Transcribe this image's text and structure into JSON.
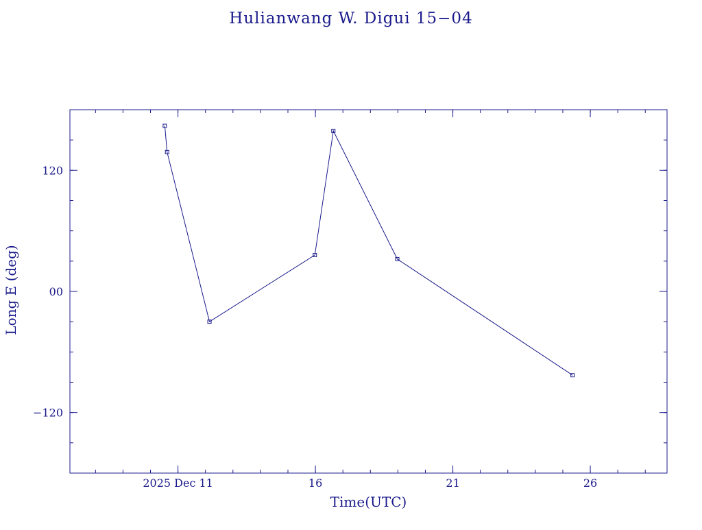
{
  "colors": {
    "ink": "#1a1a8c",
    "background": "#ffffff"
  },
  "chart_data": {
    "type": "line",
    "title": "Hulianwang W. Digui 15−04",
    "xlabel": "Time(UTC)",
    "ylabel": "Long E (deg)",
    "x_ticks": [
      {
        "date": "2025-12-11",
        "label": "2025 Dec 11"
      },
      {
        "date": "2025-12-16",
        "label": "16"
      },
      {
        "date": "2025-12-21",
        "label": "21"
      },
      {
        "date": "2025-12-26",
        "label": "26"
      }
    ],
    "y_ticks": [
      {
        "value": 120,
        "label": "120"
      },
      {
        "value": 0,
        "label": "00"
      },
      {
        "value": -120,
        "label": "−120"
      }
    ],
    "xlim": [
      "2025-12-07T01:40",
      "2025-12-28T19:00"
    ],
    "ylim": [
      -180,
      180
    ],
    "grid": false,
    "series": [
      {
        "marker": "square",
        "points": [
          {
            "x": "2025-12-10T12:30",
            "y": 164
          },
          {
            "x": "2025-12-10T14:30",
            "y": 138
          },
          {
            "x": "2025-12-12T03:30",
            "y": -30
          },
          {
            "x": "2025-12-15T23:30",
            "y": 36
          },
          {
            "x": "2025-12-16T15:40",
            "y": 159
          },
          {
            "x": "2025-12-18T23:30",
            "y": 32
          },
          {
            "x": "2025-12-25T08:30",
            "y": -83
          }
        ]
      }
    ]
  }
}
